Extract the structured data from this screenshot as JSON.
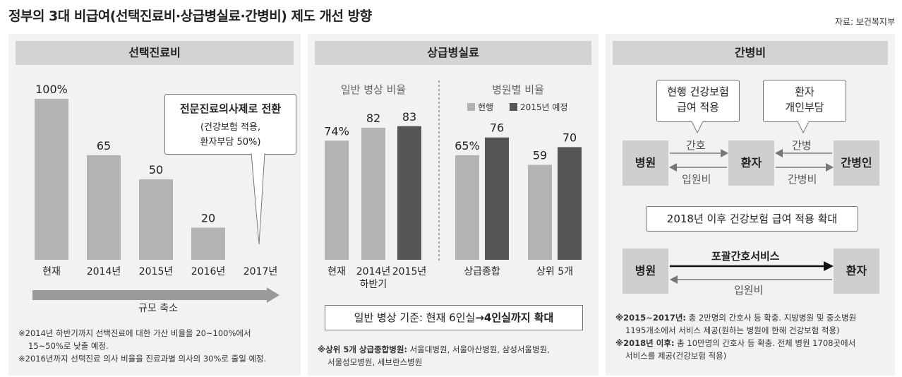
{
  "title": "정부의 3대 비급여(선택진료비·상급병실료·간병비) 제도 개선 방향",
  "source": "자료: 보건복지부",
  "colors": {
    "gray_bar": "#b3b3b3",
    "dark_bar": "#555555",
    "panel_bg": "#f2f2f2",
    "header_bg": "#d3d3d3"
  },
  "panel1": {
    "header": "선택진료비",
    "callout_title": "전문진료의사제로 전환",
    "callout_line1": "(건강보험 적용,",
    "callout_line2": "환자부담 50%)",
    "arrow_label": "규모 축소",
    "note1_line1": "※2014년 하반기까지 선택진료에 대한 가산 비율을 20~100%에서",
    "note1_line2": "15~50%로 낮출 예정.",
    "note2": "※2016년까지 선택진료 의사 비율을 진료과별 의사의 30%로 줄일 예정."
  },
  "panel2": {
    "header": "상급병실료",
    "left_subtitle": "일반 병상 비율",
    "right_subtitle": "병원별 비율",
    "legend_current": "현행",
    "legend_planned": "2015년 예정",
    "box_text_prefix": "일반 병상 기준: 현재 6인실",
    "box_text_arrow": "→",
    "box_text_bold": "4인실까지 확대",
    "note_bold": "※상위 5개 상급종합병원:",
    "note_rest1": " 서울대병원, 서울아산병원, 삼성서울병원,",
    "note_rest2": "서울성모병원, 세브란스병원"
  },
  "panel3": {
    "header": "간병비",
    "bubble1_line1": "현행 건강보험",
    "bubble1_line2": "급여 적용",
    "bubble2_line1": "환자",
    "bubble2_line2": "개인부담",
    "node_hospital": "병원",
    "node_patient": "환자",
    "node_caregiver": "간병인",
    "label_nursing": "간호",
    "label_admission": "입원비",
    "label_care": "간병",
    "label_carefee": "간병비",
    "mid_box": "2018년 이후 건강보험 급여 적용 확대",
    "bottom_hospital": "병원",
    "bottom_patient": "환자",
    "label_integrated": "포괄간호서비스",
    "label_admission2": "입원비",
    "note1_bold": "※2015~2017년:",
    "note1_rest1": " 총 2만명의 간호사 등 확충. 지방병원 및 중소병원",
    "note1_rest2": "1195개소에서 서비스 제공(원하는 병원에 한해 건강보험 적용)",
    "note2_bold": "※2018년 이후:",
    "note2_rest1": " 총 10만명의 간호사 등 확충. 전체 병원 1708곳에서",
    "note2_rest2": "서비스를 제공(건강보험 적용)"
  },
  "chart_data": [
    {
      "type": "bar",
      "title": "선택진료비",
      "categories": [
        "현재",
        "2014년",
        "2015년",
        "2016년",
        "2017년"
      ],
      "values": [
        100,
        65,
        50,
        20,
        null
      ],
      "value_labels": [
        "100%",
        "65",
        "50",
        "20",
        ""
      ],
      "ylim": [
        0,
        100
      ]
    },
    {
      "type": "bar",
      "title": "일반 병상 비율",
      "categories": [
        "현재",
        "2014년 하반기",
        "2015년"
      ],
      "values": [
        74,
        82,
        83
      ],
      "value_labels": [
        "74%",
        "82",
        "83"
      ],
      "ylim": [
        0,
        100
      ]
    },
    {
      "type": "bar",
      "title": "병원별 비율",
      "categories": [
        "상급종합",
        "상위 5개"
      ],
      "series": [
        {
          "name": "현행",
          "values": [
            65,
            59
          ]
        },
        {
          "name": "2015년 예정",
          "values": [
            76,
            70
          ]
        }
      ],
      "value_labels": [
        [
          "65%",
          "59"
        ],
        [
          "76",
          "70"
        ]
      ],
      "ylim": [
        0,
        100
      ]
    }
  ]
}
